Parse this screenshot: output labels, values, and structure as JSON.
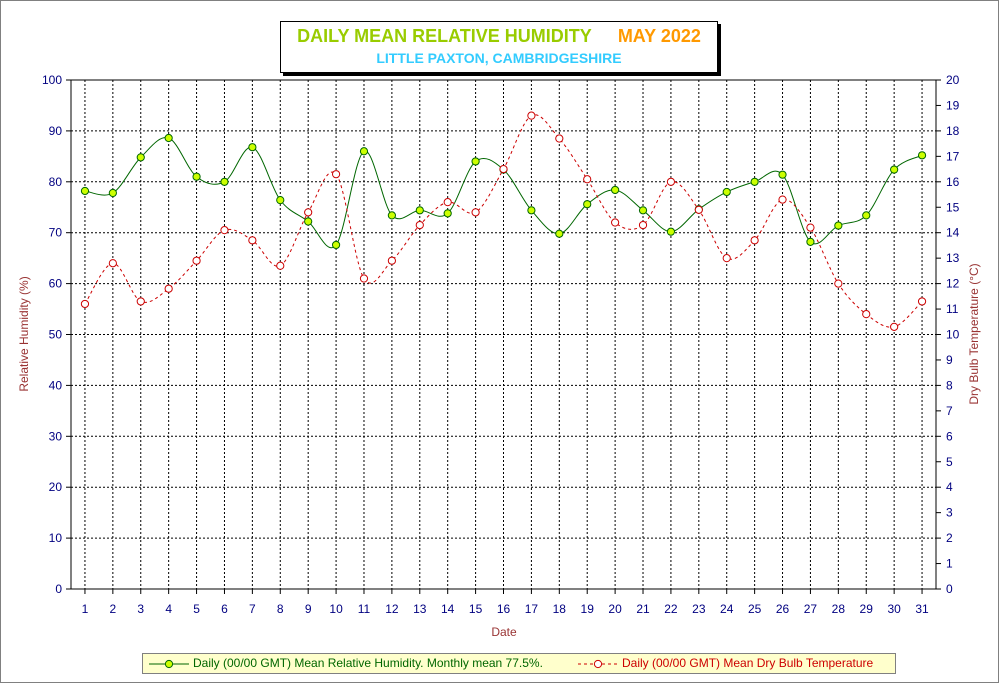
{
  "chart_data": {
    "type": "line",
    "title": "DAILY MEAN RELATIVE HUMIDITY",
    "title_period": "MAY 2022",
    "subtitle": "LITTLE PAXTON, CAMBRIDGESHIRE",
    "xlabel": "Date",
    "ylabel": "Relative Humidity (%)",
    "y2label": "Dry Bulb Temperature (°C)",
    "categories": [
      1,
      2,
      3,
      4,
      5,
      6,
      7,
      8,
      9,
      10,
      11,
      12,
      13,
      14,
      15,
      16,
      17,
      18,
      19,
      20,
      21,
      22,
      23,
      24,
      25,
      26,
      27,
      28,
      29,
      30,
      31
    ],
    "ylim": [
      0,
      100
    ],
    "yticks": [
      0,
      10,
      20,
      30,
      40,
      50,
      60,
      70,
      80,
      90,
      100
    ],
    "y2lim": [
      0,
      20
    ],
    "y2ticks": [
      0,
      1,
      2,
      3,
      4,
      5,
      6,
      7,
      8,
      9,
      10,
      11,
      12,
      13,
      14,
      15,
      16,
      17,
      18,
      19,
      20
    ],
    "grid": true,
    "legend_position": "bottom",
    "series": [
      {
        "name": "Daily (00/00 GMT) Mean Relative Humidity. Monthly mean 77.5%.",
        "axis": "left",
        "color": "#006600",
        "marker_fill": "#ccff00",
        "line_style": "solid",
        "values": [
          78.2,
          77.8,
          84.8,
          88.6,
          81.0,
          80.0,
          86.8,
          76.4,
          72.2,
          67.6,
          86.0,
          73.4,
          74.4,
          73.8,
          84.0,
          82.4,
          74.4,
          69.8,
          75.6,
          78.4,
          74.4,
          70.2,
          74.6,
          78.0,
          80.0,
          81.4,
          68.2,
          71.4,
          73.4,
          82.4,
          85.2
        ]
      },
      {
        "name": "Daily (00/00 GMT) Mean Dry Bulb Temperature",
        "axis": "right",
        "color": "#cc0000",
        "marker_fill": "#ffffff",
        "line_style": "dashed",
        "values": [
          11.2,
          12.8,
          11.3,
          11.8,
          12.9,
          14.1,
          13.7,
          12.7,
          14.8,
          16.3,
          12.2,
          12.9,
          14.3,
          15.2,
          14.8,
          16.5,
          18.6,
          17.7,
          16.1,
          14.4,
          14.3,
          16.0,
          14.9,
          13.0,
          13.7,
          15.3,
          14.2,
          12.0,
          10.8,
          10.3,
          11.3
        ]
      }
    ]
  }
}
